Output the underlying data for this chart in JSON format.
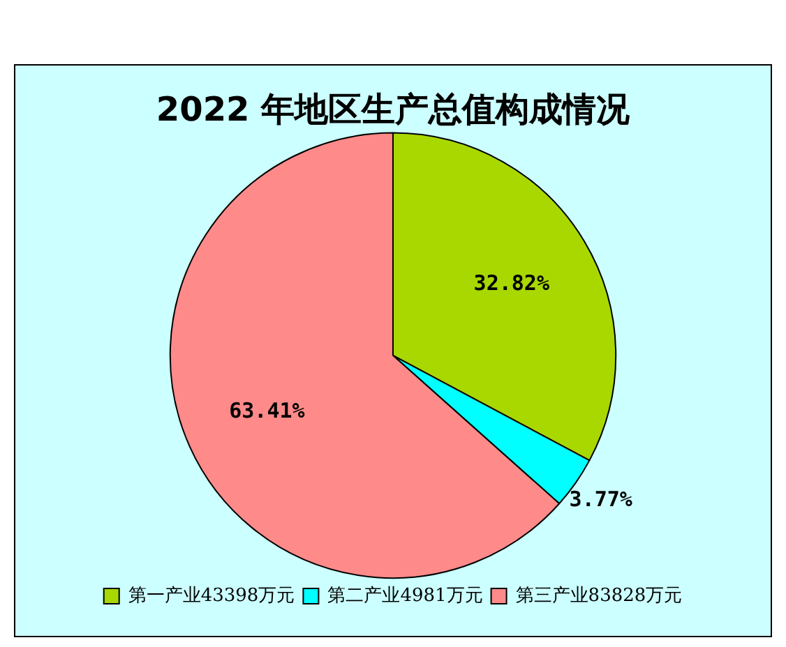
{
  "chart_data": {
    "type": "pie",
    "title": "2022 年地区生产总值构成情况",
    "categories": [
      "第一产业43398万元",
      "第二产业4981万元",
      "第三产业83828万元"
    ],
    "values": [
      32.82,
      3.77,
      63.41
    ],
    "colors": [
      "#a8d800",
      "#00ffff",
      "#ff8a8a"
    ],
    "value_labels": [
      "32.82%",
      "3.77%",
      "63.41%"
    ],
    "legend": "bottom"
  }
}
